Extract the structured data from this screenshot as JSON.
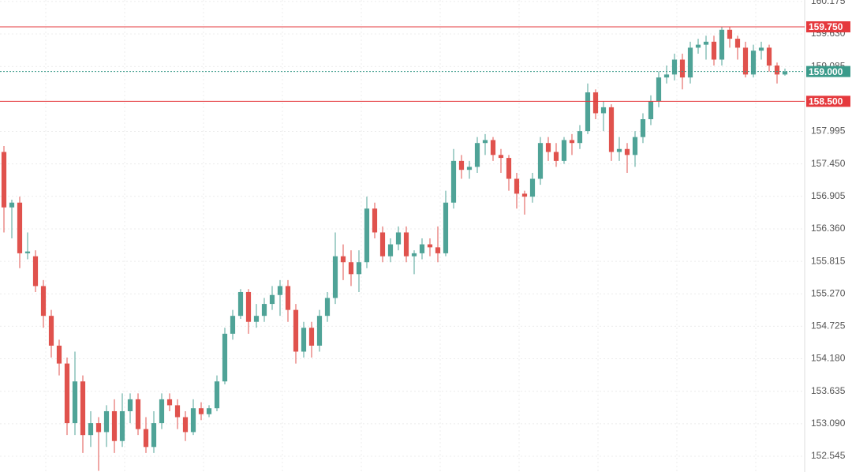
{
  "chart_data": {
    "type": "candlestick",
    "up_color": "#4fa397",
    "down_color": "#e0524d",
    "grid": true,
    "ylim": [
      152.28,
      160.2
    ],
    "yticks": [
      152.545,
      {
        "value": 153.09,
        "label": "153.090"
      },
      153.635,
      {
        "value": 154.18,
        "label": "154.180"
      },
      154.725,
      {
        "value": 155.27,
        "label": "155.270"
      },
      155.815,
      {
        "value": 156.36,
        "label": "156.360"
      },
      156.905,
      {
        "value": 157.45,
        "label": "157.450"
      },
      157.995,
      {
        "value": 159.085,
        "label": "159.085"
      },
      {
        "value": 159.63,
        "label": "159.630"
      },
      160.175
    ],
    "lines": [
      {
        "value": 159.75,
        "label": "159.750",
        "color": "#e5393d",
        "style": "solid"
      },
      {
        "value": 158.5,
        "label": "158.500",
        "color": "#e5393d",
        "style": "solid"
      },
      {
        "value": 159.0,
        "label": "159.000",
        "color": "#3a9a8a",
        "style": "dotted"
      }
    ],
    "open": [
      157.65,
      156.72,
      156.8,
      155.95,
      155.9,
      155.4,
      154.9,
      154.4,
      154.1,
      153.1,
      153.8,
      152.9,
      153.1,
      152.95,
      153.3,
      152.8,
      153.3,
      153.5,
      153.0,
      152.7,
      153.1,
      153.5,
      153.4,
      153.2,
      152.95,
      153.35,
      153.25,
      153.35,
      153.8,
      154.6,
      154.9,
      155.3,
      154.8,
      154.9,
      155.1,
      155.25,
      155.4,
      155.0,
      154.3,
      154.7,
      154.4,
      154.9,
      155.2,
      155.9,
      155.8,
      155.6,
      155.8,
      156.7,
      156.3,
      155.9,
      156.1,
      156.3,
      155.9,
      155.95,
      156.1,
      156.05,
      155.95,
      156.8,
      157.5,
      157.35,
      157.4,
      157.8,
      157.85,
      157.6,
      157.55,
      157.2,
      156.95,
      156.9,
      157.2,
      157.8,
      157.65,
      157.5,
      157.85,
      157.8,
      158.0,
      158.65,
      158.3,
      158.4,
      157.65,
      157.7,
      157.6,
      157.9,
      158.2,
      158.5,
      158.9,
      158.95,
      159.2,
      158.9,
      159.4,
      159.45,
      159.5,
      159.2,
      159.7,
      159.55,
      159.4,
      158.95,
      159.35,
      159.4,
      159.1,
      158.95
    ],
    "high": [
      157.75,
      156.85,
      156.9,
      156.3,
      156.0,
      155.5,
      155.0,
      154.5,
      154.2,
      154.3,
      153.9,
      153.3,
      153.2,
      153.4,
      153.5,
      153.6,
      153.6,
      153.6,
      153.2,
      153.3,
      153.6,
      153.6,
      153.5,
      153.3,
      153.5,
      153.45,
      153.4,
      153.9,
      154.7,
      155.0,
      155.35,
      155.35,
      155.1,
      155.2,
      155.4,
      155.5,
      155.5,
      155.1,
      154.8,
      154.8,
      155.0,
      155.3,
      156.3,
      156.1,
      156.0,
      156.0,
      156.9,
      156.8,
      156.4,
      156.2,
      156.4,
      156.4,
      156.0,
      156.2,
      156.2,
      156.4,
      157.0,
      157.7,
      157.6,
      157.5,
      157.9,
      157.95,
      157.9,
      157.7,
      157.6,
      157.3,
      157.0,
      157.3,
      157.9,
      157.9,
      157.8,
      157.9,
      157.95,
      158.1,
      158.8,
      158.7,
      158.5,
      158.45,
      157.9,
      157.8,
      158.0,
      158.3,
      158.6,
      159.0,
      159.1,
      159.3,
      159.3,
      159.5,
      159.55,
      159.6,
      159.6,
      159.75,
      159.75,
      159.6,
      159.5,
      159.45,
      159.5,
      159.45,
      159.15,
      159.05
    ],
    "low": [
      156.3,
      156.2,
      155.7,
      155.85,
      155.3,
      154.7,
      154.2,
      153.9,
      152.9,
      152.9,
      152.6,
      152.7,
      152.3,
      152.7,
      152.6,
      152.7,
      153.1,
      152.9,
      152.6,
      152.6,
      153.0,
      153.3,
      153.0,
      152.8,
      152.9,
      153.15,
      153.2,
      153.3,
      153.75,
      154.5,
      154.85,
      154.6,
      154.7,
      154.8,
      155.0,
      154.9,
      154.8,
      154.1,
      154.2,
      154.2,
      154.3,
      154.8,
      155.1,
      155.5,
      155.4,
      155.3,
      155.7,
      156.2,
      155.8,
      155.8,
      156.0,
      155.8,
      155.6,
      155.85,
      155.9,
      155.8,
      155.9,
      156.7,
      157.2,
      157.2,
      157.3,
      157.6,
      157.5,
      157.3,
      157.0,
      156.7,
      156.6,
      156.8,
      157.1,
      157.5,
      157.4,
      157.45,
      157.6,
      157.7,
      157.95,
      158.2,
      158.0,
      157.5,
      157.5,
      157.3,
      157.4,
      157.8,
      158.1,
      158.4,
      158.8,
      158.85,
      158.7,
      158.8,
      159.3,
      159.2,
      159.1,
      159.1,
      159.4,
      159.2,
      158.9,
      158.9,
      159.2,
      159.0,
      158.8,
      158.93
    ],
    "close": [
      156.72,
      156.8,
      155.95,
      155.98,
      155.4,
      154.9,
      154.4,
      154.1,
      153.1,
      153.8,
      152.9,
      153.1,
      152.95,
      153.3,
      152.8,
      153.3,
      153.5,
      153.0,
      152.7,
      153.1,
      153.5,
      153.4,
      153.2,
      152.95,
      153.35,
      153.25,
      153.35,
      153.8,
      154.6,
      154.9,
      155.3,
      154.8,
      154.9,
      155.1,
      155.25,
      155.4,
      155.0,
      154.3,
      154.7,
      154.4,
      154.9,
      155.2,
      155.9,
      155.8,
      155.6,
      155.8,
      156.7,
      156.3,
      155.9,
      156.1,
      156.3,
      155.9,
      155.95,
      156.1,
      156.05,
      155.95,
      156.8,
      157.5,
      157.35,
      157.4,
      157.8,
      157.85,
      157.6,
      157.55,
      157.2,
      156.95,
      156.9,
      157.2,
      157.8,
      157.65,
      157.5,
      157.85,
      157.8,
      158.0,
      158.65,
      158.3,
      158.4,
      157.65,
      157.7,
      157.6,
      157.9,
      158.2,
      158.5,
      158.9,
      158.95,
      159.2,
      158.9,
      159.4,
      159.45,
      159.5,
      159.2,
      159.7,
      159.55,
      159.4,
      158.95,
      159.35,
      159.4,
      159.1,
      158.95,
      159.0
    ]
  }
}
